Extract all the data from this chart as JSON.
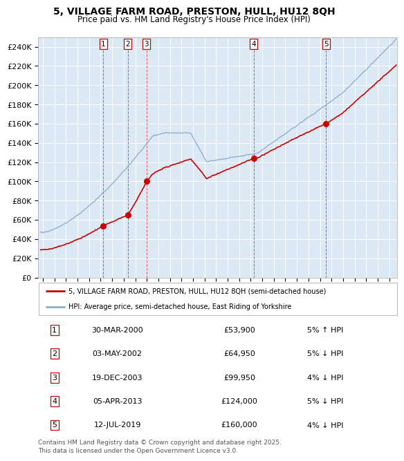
{
  "title1": "5, VILLAGE FARM ROAD, PRESTON, HULL, HU12 8QH",
  "title2": "Price paid vs. HM Land Registry's House Price Index (HPI)",
  "ylabel_vals": [
    "£0",
    "£20K",
    "£40K",
    "£60K",
    "£80K",
    "£100K",
    "£120K",
    "£140K",
    "£160K",
    "£180K",
    "£200K",
    "£220K",
    "£240K"
  ],
  "ylim": [
    0,
    250000
  ],
  "yticks": [
    0,
    20000,
    40000,
    60000,
    80000,
    100000,
    120000,
    140000,
    160000,
    180000,
    200000,
    220000,
    240000
  ],
  "xlim_start": 1994.6,
  "xlim_end": 2025.7,
  "sale_points": [
    {
      "label": "1",
      "date": 2000.24,
      "price": 53900
    },
    {
      "label": "2",
      "date": 2002.34,
      "price": 64950
    },
    {
      "label": "3",
      "date": 2003.97,
      "price": 99950
    },
    {
      "label": "4",
      "date": 2013.26,
      "price": 124000
    },
    {
      "label": "5",
      "date": 2019.53,
      "price": 160000
    }
  ],
  "sale_vlines": [
    2000.24,
    2002.34,
    2003.97,
    2013.26,
    2019.53
  ],
  "bg_color": "#dce9f5",
  "grid_color": "#ffffff",
  "line_color_red": "#cc0000",
  "line_color_blue": "#88aacc",
  "legend1": "5, VILLAGE FARM ROAD, PRESTON, HULL, HU12 8QH (semi-detached house)",
  "legend2": "HPI: Average price, semi-detached house, East Riding of Yorkshire",
  "table_data": [
    {
      "num": "1",
      "date": "30-MAR-2000",
      "price": "£53,900",
      "pct": "5% ↑ HPI"
    },
    {
      "num": "2",
      "date": "03-MAY-2002",
      "price": "£64,950",
      "pct": "5% ↓ HPI"
    },
    {
      "num": "3",
      "date": "19-DEC-2003",
      "price": "£99,950",
      "pct": "4% ↓ HPI"
    },
    {
      "num": "4",
      "date": "05-APR-2013",
      "price": "£124,000",
      "pct": "5% ↓ HPI"
    },
    {
      "num": "5",
      "date": "12-JUL-2019",
      "price": "£160,000",
      "pct": "4% ↓ HPI"
    }
  ],
  "footer": "Contains HM Land Registry data © Crown copyright and database right 2025.\nThis data is licensed under the Open Government Licence v3.0."
}
